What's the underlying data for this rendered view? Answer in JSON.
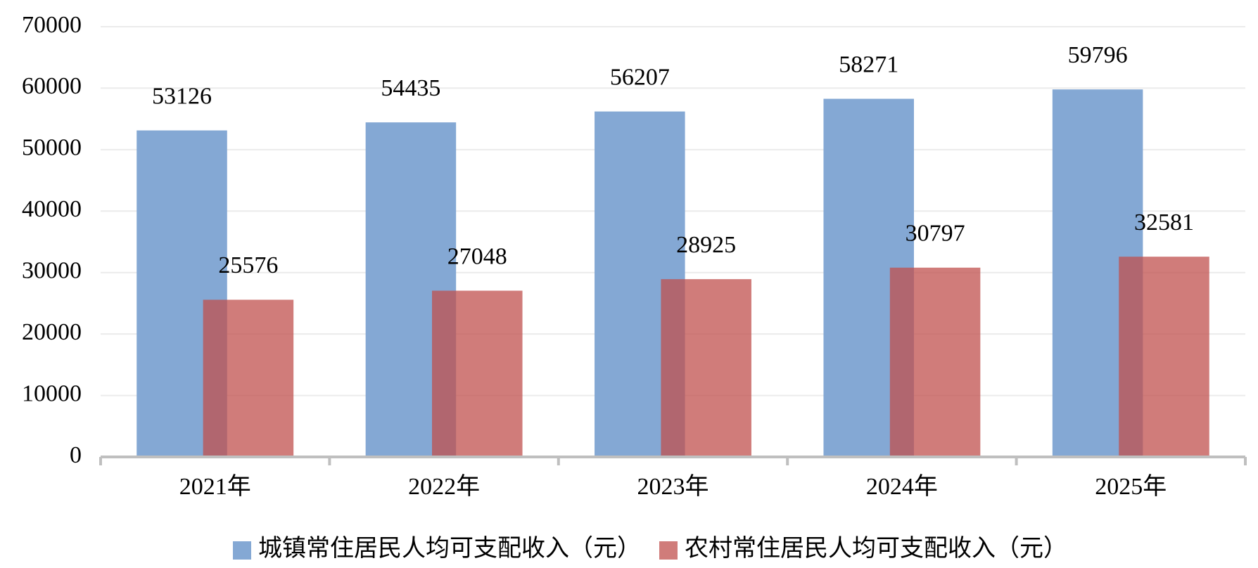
{
  "chart_data": {
    "type": "bar",
    "categories": [
      "2021年",
      "2022年",
      "2023年",
      "2024年",
      "2025年"
    ],
    "series": [
      {
        "name": "城镇常住居民人均可支配收入（元）",
        "color": "#84a8d4",
        "values": [
          53126,
          54435,
          56207,
          58271,
          59796
        ]
      },
      {
        "name": "农村常住居民人均可支配收入（元）",
        "color": "#c0504d",
        "values": [
          25576,
          27048,
          28925,
          30797,
          32581
        ]
      }
    ],
    "ylim": [
      0,
      70000
    ],
    "yticks": [
      0,
      10000,
      20000,
      30000,
      40000,
      50000,
      60000,
      70000
    ],
    "grid": true,
    "legend": "bottom"
  }
}
